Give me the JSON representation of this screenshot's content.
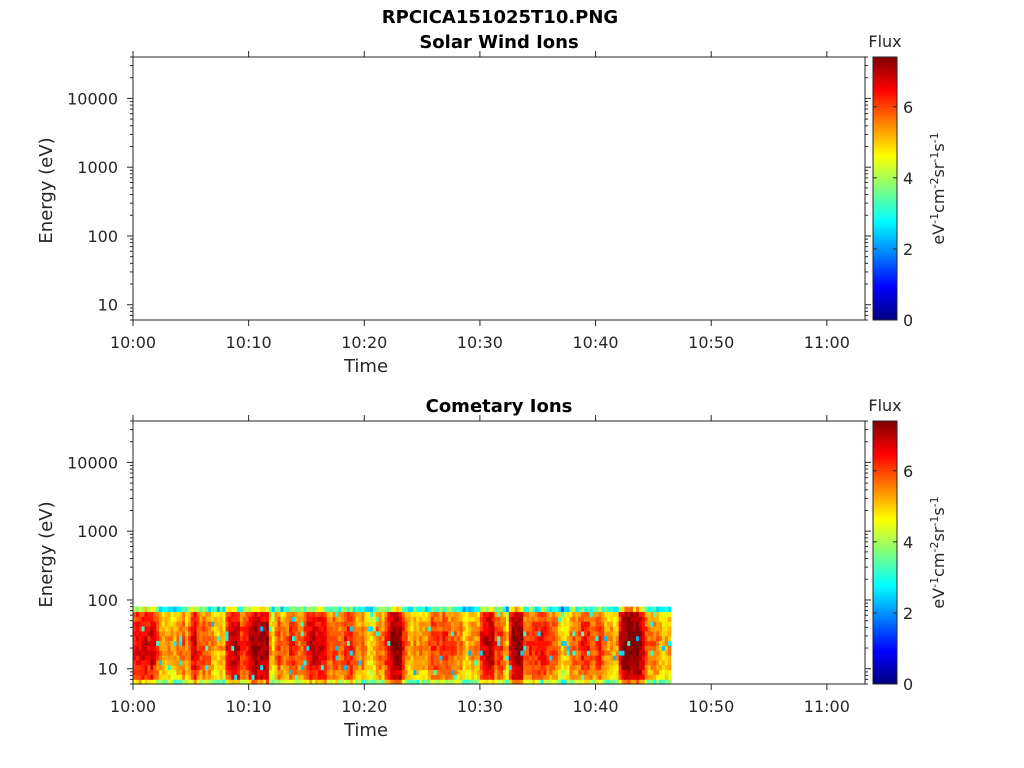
{
  "figure": {
    "filename": "RPCICA151025T10.PNG"
  },
  "colors": {
    "jet": [
      "#00007f",
      "#0000ff",
      "#007fff",
      "#00ffff",
      "#7fff7f",
      "#ffff00",
      "#ff7f00",
      "#ff0000",
      "#7f0000"
    ]
  },
  "chart_data": [
    {
      "type": "heatmap",
      "title": "Solar Wind Ions",
      "xlabel": "Time",
      "ylabel": "Energy (eV)",
      "yscale": "log",
      "ylim": [
        6,
        40000
      ],
      "x_tick_labels": [
        "10:00",
        "10:10",
        "10:20",
        "10:30",
        "10:40",
        "10:50",
        "11:00"
      ],
      "x_ticks_min": [
        0,
        10,
        20,
        30,
        40,
        50,
        60
      ],
      "xlim_min": [
        0,
        63.3
      ],
      "y_ticks": [
        10,
        100,
        1000,
        10000
      ],
      "y_tick_labels": [
        "10",
        "100",
        "1000",
        "10000"
      ],
      "colorbar": {
        "label_top": "Flux",
        "unit": "eV-1cm-2sr-1s-1",
        "range": [
          0,
          7.4
        ],
        "ticks": [
          0,
          2,
          4,
          6
        ],
        "tick_labels": [
          "0",
          "2",
          "4",
          "6"
        ]
      },
      "data": "none"
    },
    {
      "type": "heatmap",
      "title": "Cometary Ions",
      "xlabel": "Time",
      "ylabel": "Energy (eV)",
      "yscale": "log",
      "ylim": [
        6,
        40000
      ],
      "x_tick_labels": [
        "10:00",
        "10:10",
        "10:20",
        "10:30",
        "10:40",
        "10:50",
        "11:00"
      ],
      "x_ticks_min": [
        0,
        10,
        20,
        30,
        40,
        50,
        60
      ],
      "xlim_min": [
        0,
        63.3
      ],
      "y_ticks": [
        10,
        100,
        1000,
        10000
      ],
      "y_tick_labels": [
        "10",
        "100",
        "1000",
        "10000"
      ],
      "colorbar": {
        "label_top": "Flux",
        "unit": "eV-1cm-2sr-1s-1",
        "range": [
          0,
          7.4
        ],
        "ticks": [
          0,
          2,
          4,
          6
        ],
        "tick_labels": [
          "0",
          "2",
          "4",
          "6"
        ]
      },
      "data_extent": {
        "time_min": [
          0,
          46.5
        ],
        "energy_ev": [
          6,
          80
        ]
      },
      "intense_bands_min": [
        {
          "t": [
            0,
            1
          ],
          "level": 6.4
        },
        {
          "t": [
            8,
            9
          ],
          "level": 6.8
        },
        {
          "t": [
            10,
            11.5
          ],
          "level": 6.9
        },
        {
          "t": [
            15,
            16.5
          ],
          "level": 6.6
        },
        {
          "t": [
            22,
            23
          ],
          "level": 7.0
        },
        {
          "t": [
            30,
            31
          ],
          "level": 6.7
        },
        {
          "t": [
            32.5,
            33.5
          ],
          "level": 7.0
        },
        {
          "t": [
            42,
            43.5
          ],
          "level": 7.2
        }
      ]
    }
  ]
}
